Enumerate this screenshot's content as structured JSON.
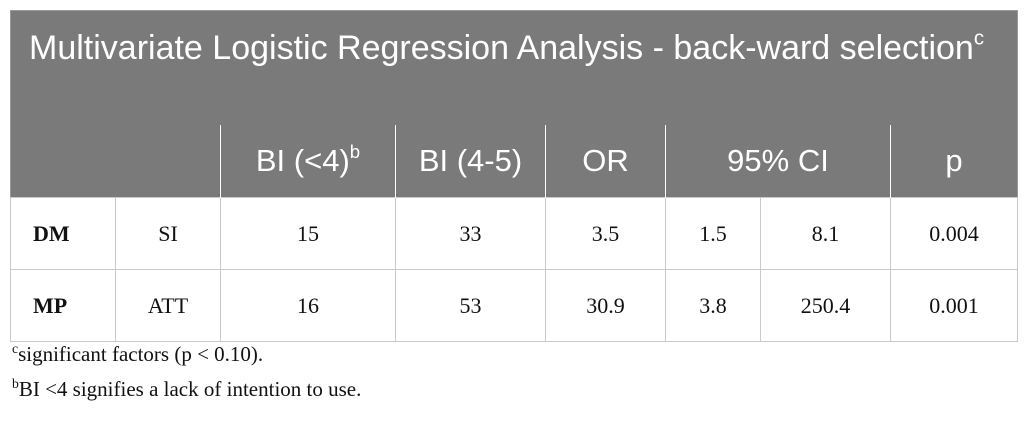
{
  "title": {
    "text": "Multivariate Logistic Regression Analysis - back-ward selection",
    "note": "c"
  },
  "header": [
    {
      "text": "BI (<4)",
      "note": "b"
    },
    {
      "text": "BI (4-5)"
    },
    {
      "text": "OR"
    },
    {
      "text": "95% CI"
    },
    {
      "text": "p"
    }
  ],
  "rows": [
    [
      "DM",
      "SI",
      "15",
      "33",
      "3.5",
      "1.5",
      "8.1",
      "0.004"
    ],
    [
      "MP",
      "ATT",
      "16",
      "53",
      "30.9",
      "3.8",
      "250.4",
      "0.001"
    ]
  ],
  "footnotes": [
    {
      "mark": "c",
      "text": "significant factors (p < 0.10)."
    },
    {
      "mark": "b",
      "text": "BI <4 signifies a lack of intention to use."
    }
  ]
}
